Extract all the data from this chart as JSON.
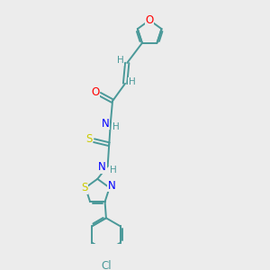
{
  "bg_color": "#ececec",
  "atom_colors": {
    "C": "#4a9999",
    "H": "#4a9999",
    "O": "#ff0000",
    "N": "#0000ff",
    "S": "#cccc00",
    "Cl": "#4a9999",
    "bond": "#4a9999"
  }
}
